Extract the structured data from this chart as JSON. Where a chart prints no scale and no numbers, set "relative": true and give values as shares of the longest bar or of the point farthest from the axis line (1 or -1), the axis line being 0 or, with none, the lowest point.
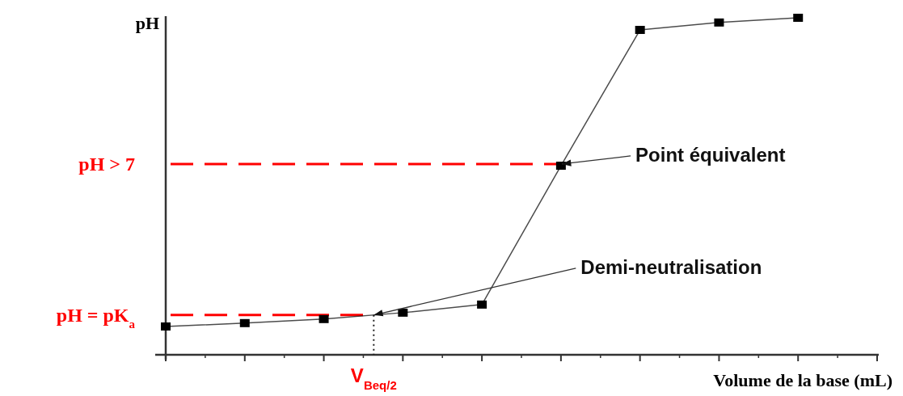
{
  "chart_data": {
    "type": "line",
    "relative": true,
    "ylabel": "pH",
    "xlabel": "Volume de la base (mL)",
    "categories": [
      null,
      null,
      null,
      null,
      null,
      null,
      null,
      null,
      null,
      null
    ],
    "series": [
      {
        "color": "#000000",
        "values": [
          0.084,
          0.094,
          0.106,
          0.125,
          0.149,
          0.561,
          0.964,
          0.986,
          1,
          null
        ]
      }
    ],
    "marker": "square",
    "line_style": "solid",
    "grid": false,
    "ref_lines": [
      {
        "axis": "y",
        "value": 0.566,
        "label": "pH > 7",
        "color": "#ff0000",
        "line_style": "dashed"
      },
      {
        "axis": "y",
        "value": 0.118,
        "label": "pH = pK$_{a}$",
        "color": "#ff0000",
        "line_style": "dashed"
      }
    ],
    "annotations": [
      "Point équivalent",
      "Demi-neutralisation",
      "V$_{Beq/2}$"
    ]
  }
}
